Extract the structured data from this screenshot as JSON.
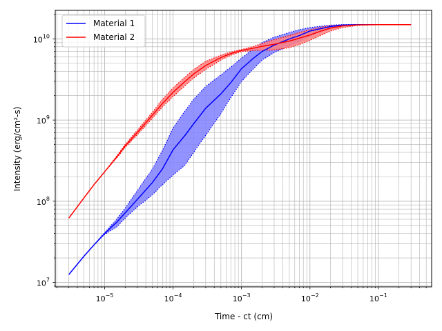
{
  "chart_data": {
    "type": "line",
    "title": "",
    "xlabel": "Time - ct (cm)",
    "ylabel": "Intensity (erg/cm²-s)",
    "xscale": "log",
    "yscale": "log",
    "xlim": [
      1.9e-06,
      0.6
    ],
    "ylim": [
      8800000.0,
      22500000000.0
    ],
    "grid": "both major and minor",
    "legend_position": "upper left",
    "x_ticks": [
      {
        "value": 1e-05,
        "base": "10",
        "exp": "−5"
      },
      {
        "value": 0.0001,
        "base": "10",
        "exp": "−4"
      },
      {
        "value": 0.001,
        "base": "10",
        "exp": "−3"
      },
      {
        "value": 0.01,
        "base": "10",
        "exp": "−2"
      },
      {
        "value": 0.1,
        "base": "10",
        "exp": "−1"
      }
    ],
    "y_ticks": [
      {
        "value": 10000000.0,
        "base": "10",
        "exp": "7"
      },
      {
        "value": 100000000.0,
        "base": "10",
        "exp": "8"
      },
      {
        "value": 1000000000.0,
        "base": "10",
        "exp": "9"
      },
      {
        "value": 10000000000.0,
        "base": "10",
        "exp": "10"
      }
    ],
    "series": [
      {
        "name": "Material 1",
        "color": "#0000ff",
        "band_color": "#8080ff",
        "x": [
          3e-06,
          5e-06,
          7e-06,
          1e-05,
          1.5e-05,
          2e-05,
          3e-05,
          5e-05,
          7e-05,
          0.0001,
          0.00015,
          0.0002,
          0.0003,
          0.0005,
          0.0007,
          0.001,
          0.0015,
          0.002,
          0.003,
          0.005,
          0.007,
          0.01,
          0.015,
          0.02,
          0.03,
          0.05,
          0.1,
          0.3
        ],
        "y": [
          12500000.0,
          21000000.0,
          29000000.0,
          40000000.0,
          55000000.0,
          72000000.0,
          105000000.0,
          170000000.0,
          250000000.0,
          430000000.0,
          650000000.0,
          900000000.0,
          1400000000.0,
          2100000000.0,
          2900000000.0,
          4300000000.0,
          5800000000.0,
          7000000000.0,
          8400000000.0,
          10000000000.0,
          11000000000.0,
          12500000000.0,
          13500000000.0,
          14200000000.0,
          14800000000.0,
          15000000000.0,
          15000000000.0,
          15000000000.0
        ],
        "upper": [
          12500000.0,
          21000000.0,
          29000000.0,
          41000000.0,
          60000000.0,
          82000000.0,
          135000000.0,
          250000000.0,
          420000000.0,
          800000000.0,
          1300000000.0,
          1800000000.0,
          2600000000.0,
          3600000000.0,
          4500000000.0,
          5800000000.0,
          7600000000.0,
          9000000000.0,
          10500000000.0,
          12000000000.0,
          13000000000.0,
          13800000000.0,
          14400000000.0,
          14800000000.0,
          15000000000.0,
          15000000000.0,
          15000000000.0,
          15000000000.0
        ],
        "lower": [
          12500000.0,
          21000000.0,
          29000000.0,
          39000000.0,
          48000000.0,
          62000000.0,
          85000000.0,
          120000000.0,
          160000000.0,
          210000000.0,
          280000000.0,
          400000000.0,
          650000000.0,
          1200000000.0,
          1900000000.0,
          3000000000.0,
          4300000000.0,
          5500000000.0,
          6800000000.0,
          8200000000.0,
          9300000000.0,
          10800000000.0,
          12500000000.0,
          13500000000.0,
          14400000000.0,
          14900000000.0,
          15000000000.0,
          15000000000.0
        ]
      },
      {
        "name": "Material 2",
        "color": "#ff0000",
        "band_color": "#ff8080",
        "x": [
          3e-06,
          5e-06,
          7e-06,
          1e-05,
          1.5e-05,
          2e-05,
          3e-05,
          5e-05,
          7e-05,
          0.0001,
          0.00015,
          0.0002,
          0.0003,
          0.0005,
          0.0007,
          0.001,
          0.0015,
          0.002,
          0.003,
          0.005,
          0.007,
          0.01,
          0.015,
          0.02,
          0.03,
          0.05,
          0.1,
          0.3
        ],
        "y": [
          62000000.0,
          110000000.0,
          160000000.0,
          230000000.0,
          350000000.0,
          480000000.0,
          700000000.0,
          1150000000.0,
          1600000000.0,
          2200000000.0,
          3000000000.0,
          3700000000.0,
          4700000000.0,
          5900000000.0,
          6600000000.0,
          7200000000.0,
          7700000000.0,
          8100000000.0,
          8600000000.0,
          9400000000.0,
          10200000000.0,
          11200000000.0,
          12600000000.0,
          13600000000.0,
          14500000000.0,
          14900000000.0,
          15000000000.0,
          15000000000.0
        ],
        "upper": [
          62000000.0,
          110000000.0,
          160000000.0,
          230000000.0,
          360000000.0,
          500000000.0,
          750000000.0,
          1250000000.0,
          1800000000.0,
          2500000000.0,
          3400000000.0,
          4200000000.0,
          5300000000.0,
          6300000000.0,
          6900000000.0,
          7400000000.0,
          8100000000.0,
          8800000000.0,
          9800000000.0,
          11000000000.0,
          12000000000.0,
          13000000000.0,
          14000000000.0,
          14500000000.0,
          14900000000.0,
          15000000000.0,
          15000000000.0,
          15000000000.0
        ],
        "lower": [
          62000000.0,
          110000000.0,
          160000000.0,
          230000000.0,
          340000000.0,
          460000000.0,
          660000000.0,
          1050000000.0,
          1450000000.0,
          1950000000.0,
          2650000000.0,
          3300000000.0,
          4200000000.0,
          5500000000.0,
          6300000000.0,
          7000000000.0,
          7200000000.0,
          7200000000.0,
          7300000000.0,
          7800000000.0,
          8500000000.0,
          9600000000.0,
          11200000000.0,
          12500000000.0,
          13800000000.0,
          14700000000.0,
          15000000000.0,
          15000000000.0
        ]
      }
    ]
  }
}
